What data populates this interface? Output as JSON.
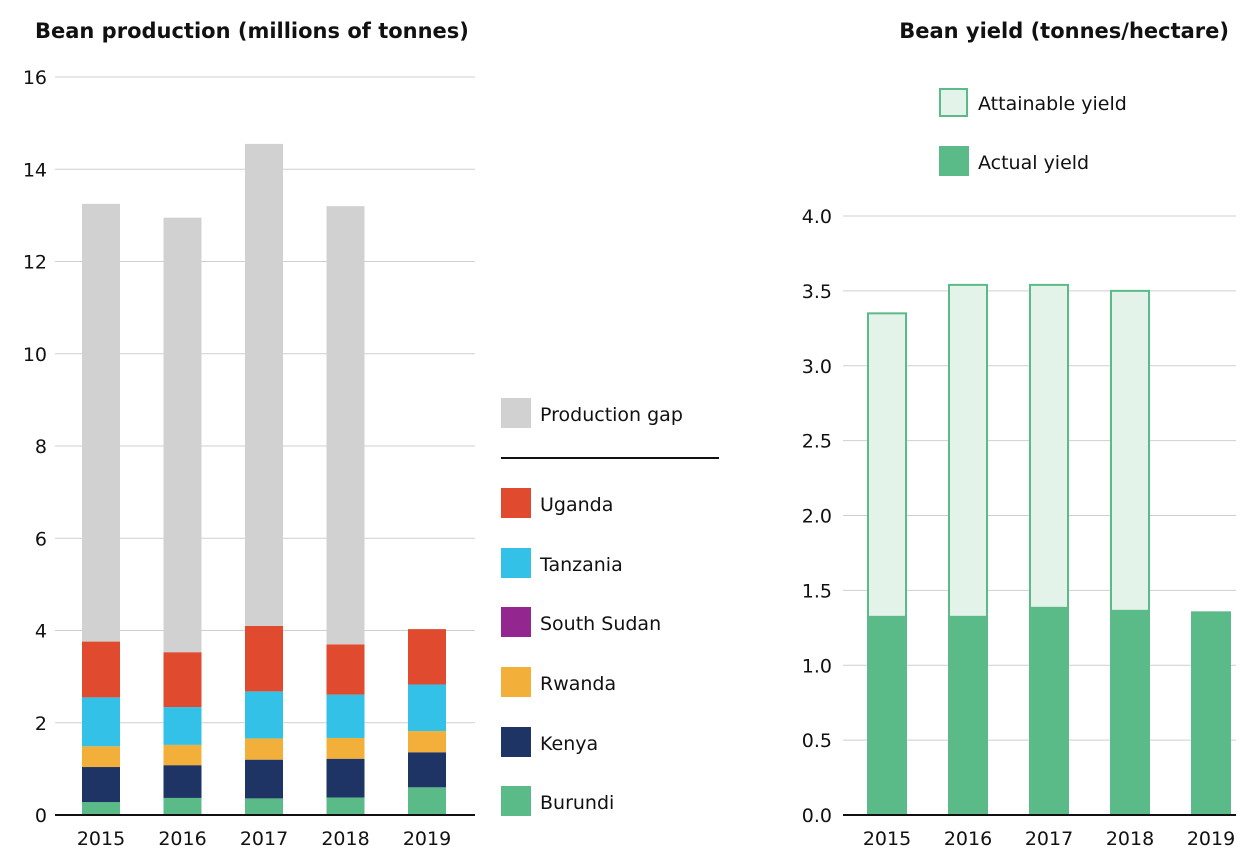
{
  "colors": {
    "gap": "#d0d1d0",
    "uganda": "#e04a2f",
    "tanzania": "#33c1e8",
    "south_sudan": "#93278f",
    "rwanda": "#f2b03a",
    "kenya": "#1e3464",
    "burundi": "#5bbb88",
    "attainable_fill": "#e4f3ea",
    "attainable_stroke": "#5bbb88",
    "actual": "#5bbb88"
  },
  "chart_data": [
    {
      "type": "bar",
      "stacked": true,
      "title": "Bean production (millions of tonnes)",
      "categories": [
        "2015",
        "2016",
        "2017",
        "2018",
        "2019"
      ],
      "ylim": [
        0,
        16
      ],
      "yticks": [
        "0",
        "2",
        "4",
        "6",
        "8",
        "10",
        "12",
        "14",
        "16"
      ],
      "grid": true,
      "legend_position": "right",
      "series": [
        {
          "name": "Burundi",
          "values": [
            0.28,
            0.37,
            0.36,
            0.38,
            0.6
          ]
        },
        {
          "name": "Kenya",
          "values": [
            0.76,
            0.71,
            0.84,
            0.84,
            0.76
          ]
        },
        {
          "name": "Rwanda",
          "values": [
            0.45,
            0.44,
            0.46,
            0.45,
            0.46
          ]
        },
        {
          "name": "South Sudan",
          "values": [
            0.0,
            0.0,
            0.0,
            0.0,
            0.0
          ]
        },
        {
          "name": "Tanzania",
          "values": [
            1.06,
            0.82,
            1.02,
            0.94,
            1.01
          ]
        },
        {
          "name": "Uganda",
          "values": [
            1.21,
            1.19,
            1.42,
            1.09,
            1.2
          ]
        },
        {
          "name": "Production gap",
          "values": [
            9.49,
            9.42,
            10.45,
            9.5,
            0.0
          ]
        }
      ]
    },
    {
      "type": "bar",
      "title": "Bean yield (tonnes/hectare)",
      "categories": [
        "2015",
        "2016",
        "2017",
        "2018",
        "2019"
      ],
      "ylim": [
        0,
        4.0
      ],
      "yticks": [
        "0.0",
        "0.5",
        "1.0",
        "1.5",
        "2.0",
        "2.5",
        "3.0",
        "3.5",
        "4.0"
      ],
      "grid": true,
      "legend_position": "top",
      "series": [
        {
          "name": "Attainable yield",
          "values": [
            3.35,
            3.54,
            3.54,
            3.5,
            null
          ]
        },
        {
          "name": "Actual yield",
          "values": [
            1.33,
            1.33,
            1.39,
            1.37,
            1.36
          ]
        }
      ]
    }
  ]
}
